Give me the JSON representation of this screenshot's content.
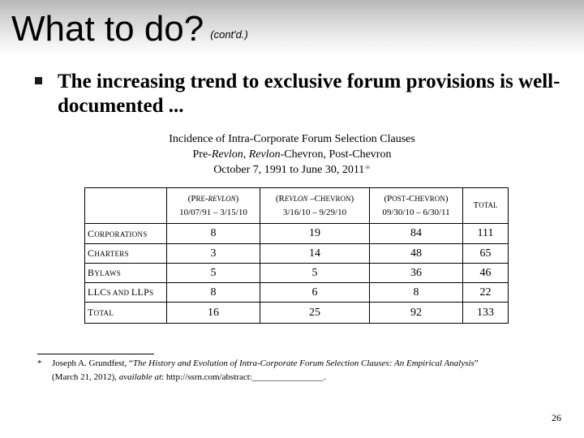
{
  "slide": {
    "title": "What to do?",
    "title_note": "(cont'd.)",
    "bullet": "The increasing trend to exclusive forum provisions is well-documented ...",
    "caption": {
      "line1": "Incidence of Intra-Corporate Forum Selection Clauses",
      "line2_a": "Pre-",
      "line2_b": "Revlon",
      "line2_c": ", ",
      "line2_d": "Revlon",
      "line2_e": "-Chevron, Post-Chevron",
      "line3": "October 7, 1991 to June 30, 2011",
      "line3_mark": "*"
    },
    "table": {
      "headers": [
        {
          "l1a": "(P",
          "l1b": "RE",
          "l1c": "-",
          "l1d": "REVLON",
          "l1e": ")",
          "l2": "10/07/91 – 3/15/10"
        },
        {
          "l1a": "(R",
          "l1b": "EVLON",
          "l1c": " –C",
          "l1d": "HEVRON",
          "l1e": ")",
          "l2": "3/16/10 – 9/29/10"
        },
        {
          "l1a": "(P",
          "l1b": "OST",
          "l1c": "-C",
          "l1d": "HEVRON",
          "l1e": ")",
          "l2": "09/30/10 – 6/30/11"
        },
        {
          "l1a": "T",
          "l1b": "OTAL"
        }
      ],
      "rows": [
        {
          "label_a": "C",
          "label_b": "ORPORATIONS",
          "values": [
            "8",
            "19",
            "84",
            "111"
          ]
        },
        {
          "label_a": "C",
          "label_b": "HARTERS",
          "values": [
            "3",
            "14",
            "48",
            "65"
          ]
        },
        {
          "label_a": "B",
          "label_b": "YLAWS",
          "values": [
            "5",
            "5",
            "36",
            "46"
          ]
        },
        {
          "label_a": "LLC",
          "label_b": "S AND ",
          "label_c": "LLP",
          "label_d": "S",
          "values": [
            "8",
            "6",
            "8",
            "22"
          ]
        },
        {
          "label_a": "T",
          "label_b": "OTAL",
          "values": [
            "16",
            "25",
            "92",
            "133"
          ]
        }
      ]
    },
    "footnote": {
      "mark": "*",
      "author": "Joseph A. Grundfest, “",
      "paper_title": "The History and Evolution of Intra-Corporate Forum Selection Clauses: An Empirical Analysis",
      "close_quote": "”",
      "date": "(March 21, 2012), ",
      "available": "available at",
      "url": ": http://ssrn.com/abstract:",
      "blank": "________________",
      "end": "."
    },
    "page_number": "26"
  }
}
